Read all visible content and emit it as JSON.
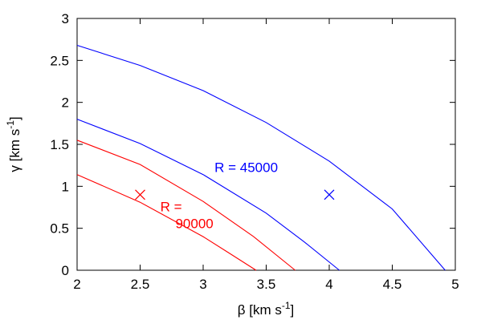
{
  "chart_data": {
    "type": "line",
    "title": "",
    "xlabel": "β [km s",
    "xlabel_sup": "-1",
    "xlabel_close": "]",
    "ylabel": "γ [km s",
    "ylabel_sup": "-1",
    "ylabel_close": "]",
    "xlim": [
      2,
      5
    ],
    "ylim": [
      0,
      3
    ],
    "xticks": [
      "2",
      "2.5",
      "3",
      "3.5",
      "4",
      "4.5",
      "5"
    ],
    "yticks": [
      "0",
      "0.5",
      "1",
      "1.5",
      "2",
      "2.5",
      "3"
    ],
    "grid": false,
    "legend": "none",
    "series": [
      {
        "color": "#0000ff",
        "x": [
          2.0,
          2.5,
          3.0,
          3.5,
          4.0,
          4.5,
          4.92
        ],
        "y": [
          2.68,
          2.44,
          2.14,
          1.76,
          1.3,
          0.73,
          0.0
        ]
      },
      {
        "color": "#0000ff",
        "x": [
          2.0,
          2.5,
          3.0,
          3.5,
          3.8,
          4.08
        ],
        "y": [
          1.8,
          1.51,
          1.14,
          0.68,
          0.34,
          0.0
        ]
      },
      {
        "color": "#ff0000",
        "x": [
          2.0,
          2.5,
          3.0,
          3.4,
          3.73
        ],
        "y": [
          1.55,
          1.26,
          0.82,
          0.4,
          0.0
        ]
      },
      {
        "color": "#ff0000",
        "x": [
          2.0,
          2.5,
          3.0,
          3.2,
          3.42
        ],
        "y": [
          1.14,
          0.81,
          0.4,
          0.21,
          0.0
        ]
      }
    ],
    "markers": [
      {
        "x": 2.5,
        "y": 0.9,
        "color": "#ff0000"
      },
      {
        "x": 4.0,
        "y": 0.9,
        "color": "#0000ff"
      }
    ],
    "annotations": [
      {
        "text": "R = 45000",
        "x": 3.09,
        "y": 1.17,
        "color": "#0000ff"
      },
      {
        "text": "R =",
        "x": 2.66,
        "y": 0.7,
        "color": "#ff0000"
      },
      {
        "text": "90000",
        "x": 2.78,
        "y": 0.5,
        "color": "#ff0000"
      }
    ]
  }
}
